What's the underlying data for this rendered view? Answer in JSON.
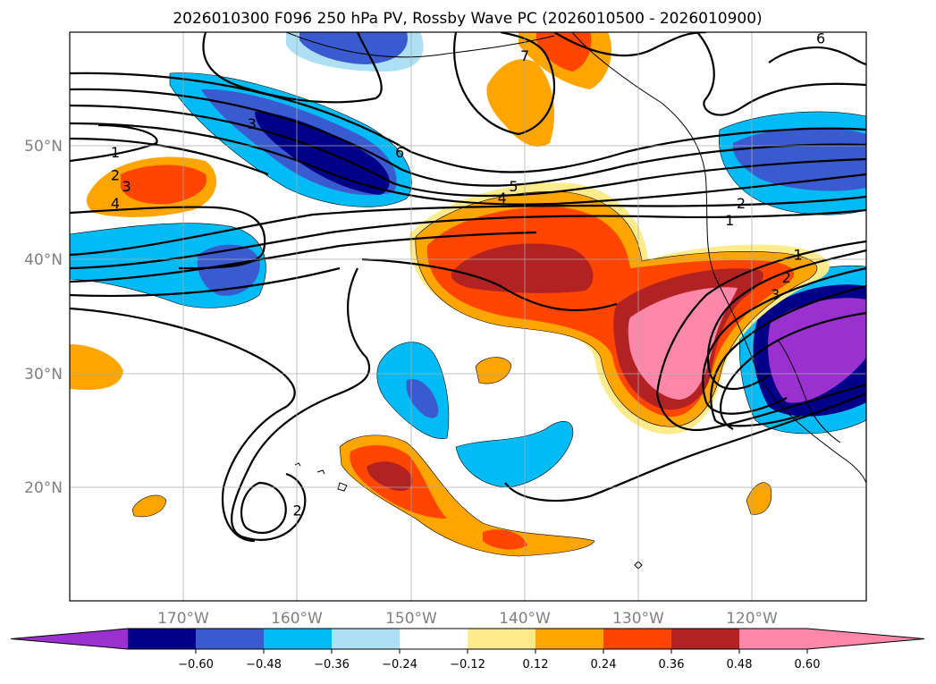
{
  "title": "2026010300 F096 250 hPa PV, Rossby Wave PC (2026010500 - 2026010900)",
  "map": {
    "projection": "lat-lon",
    "lon_range": [
      -180,
      -110
    ],
    "lat_range": [
      10,
      60
    ],
    "lat_labels": [
      "20°N",
      "30°N",
      "40°N",
      "50°N"
    ],
    "lon_labels": [
      "170°W",
      "160°W",
      "150°W",
      "140°W",
      "130°W",
      "120°W"
    ],
    "gridlines": true,
    "contour_labels": [
      {
        "text": "1",
        "lon": -176,
        "lat": 49
      },
      {
        "text": "2",
        "lon": -176,
        "lat": 47
      },
      {
        "text": "3",
        "lon": -175,
        "lat": 46
      },
      {
        "text": "4",
        "lon": -176,
        "lat": 44.5
      },
      {
        "text": "3",
        "lon": -164,
        "lat": 51.5
      },
      {
        "text": "6",
        "lon": -151,
        "lat": 49
      },
      {
        "text": "5",
        "lon": -141,
        "lat": 46
      },
      {
        "text": "4",
        "lon": -142,
        "lat": 45
      },
      {
        "text": "7",
        "lon": -140,
        "lat": 57.5
      },
      {
        "text": "6",
        "lon": -114,
        "lat": 59
      },
      {
        "text": "2",
        "lon": -121,
        "lat": 44.5
      },
      {
        "text": "1",
        "lon": -122,
        "lat": 43
      },
      {
        "text": "1",
        "lon": -116,
        "lat": 40
      },
      {
        "text": "2",
        "lon": -117,
        "lat": 38
      },
      {
        "text": "3",
        "lon": -118,
        "lat": 36.5
      },
      {
        "text": "2",
        "lon": -160,
        "lat": 17.5
      }
    ]
  },
  "colorbar": {
    "ticks": [
      "−0.60",
      "−0.48",
      "−0.36",
      "−0.24",
      "−0.12",
      "0.12",
      "0.24",
      "0.36",
      "0.48",
      "0.60"
    ],
    "colors": [
      "#9b30d0",
      "#000088",
      "#3a5bd0",
      "#00bbf5",
      "#aee0f5",
      "#ffffff",
      "#fdeb8c",
      "#ffa500",
      "#ff4500",
      "#b22222",
      "#ff88aa",
      "#ff88aa"
    ]
  }
}
